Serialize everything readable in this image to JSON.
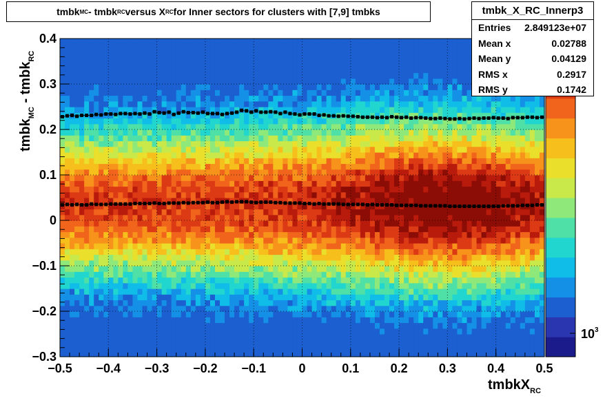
{
  "title": {
    "part1": "tmbk",
    "sub1": "MC",
    "part2": " - tmbk",
    "sub2": "RC",
    "part3": " versus X",
    "sub3": "RC",
    "part4": " for Inner sectors for clusters with [7,9] tmbks"
  },
  "stats": {
    "name": "tmbk_X_RC_Innerp3",
    "rows": [
      {
        "label": "Entries",
        "value": "2.849123e+07"
      },
      {
        "label": "Mean x",
        "value": "0.02788"
      },
      {
        "label": "Mean y",
        "value": "0.04129"
      },
      {
        "label": "RMS x",
        "value": "0.2917"
      },
      {
        "label": "RMS y",
        "value": "0.1742"
      }
    ]
  },
  "axes": {
    "xlabel_main": "tmbkX",
    "xlabel_sub": "RC",
    "ylabel_part1": "tmbk",
    "ylabel_sub1": "MC",
    "ylabel_part2": " - tmbk",
    "ylabel_sub2": "RC",
    "zlabel_base": "10",
    "zlabel_exp": "3"
  },
  "chart_data": {
    "type": "heatmap",
    "xlim": [
      -0.5,
      0.5
    ],
    "ylim": [
      -0.3,
      0.4
    ],
    "x_ticks": [
      -0.5,
      -0.4,
      -0.3,
      -0.2,
      -0.1,
      0,
      0.1,
      0.2,
      0.3,
      0.4,
      0.5
    ],
    "x_tick_labels": [
      "−0.5",
      "−0.4",
      "−0.3",
      "−0.2",
      "−0.1",
      "0",
      "0.1",
      "0.2",
      "0.3",
      "0.4",
      "0.5"
    ],
    "y_ticks": [
      -0.3,
      -0.2,
      -0.1,
      0,
      0.1,
      0.2,
      0.3,
      0.4
    ],
    "y_tick_labels": [
      "−0.3",
      "−0.2",
      "−0.1",
      "0",
      "0.1",
      "0.2",
      "0.3",
      "0.4"
    ],
    "grid": true,
    "z_scale": "log",
    "x_bins": 100,
    "y_bins": 56,
    "palette": [
      "#1b1b8c",
      "#2a35b0",
      "#1c5fd0",
      "#1490e6",
      "#10bde8",
      "#20d6cf",
      "#4ee0a6",
      "#8fe87a",
      "#c9e84a",
      "#eadf2a",
      "#f6bf1c",
      "#f7921a",
      "#f0641c",
      "#dc3a14",
      "#b81a0c",
      "#8c0c06"
    ],
    "profile_upper_y": [
      0.228,
      0.23,
      0.231,
      0.229,
      0.231,
      0.231,
      0.231,
      0.233,
      0.232,
      0.234,
      0.234,
      0.233,
      0.235,
      0.235,
      0.234,
      0.235,
      0.234,
      0.236,
      0.234,
      0.239,
      0.237,
      0.236,
      0.238,
      0.233,
      0.236,
      0.239,
      0.237,
      0.237,
      0.236,
      0.238,
      0.235,
      0.235,
      0.235,
      0.233,
      0.235,
      0.236,
      0.238,
      0.242,
      0.241,
      0.238,
      0.241,
      0.238,
      0.238,
      0.239,
      0.238,
      0.235,
      0.238,
      0.235,
      0.234,
      0.232,
      0.234,
      0.234,
      0.234,
      0.231,
      0.232,
      0.23,
      0.23,
      0.229,
      0.23,
      0.229,
      0.229,
      0.228,
      0.227,
      0.227,
      0.227,
      0.226,
      0.227,
      0.226,
      0.228,
      0.227,
      0.226,
      0.227,
      0.225,
      0.226,
      0.226,
      0.225,
      0.224,
      0.224,
      0.225,
      0.224,
      0.223,
      0.223,
      0.224,
      0.223,
      0.224,
      0.225,
      0.224,
      0.225,
      0.225,
      0.226,
      0.225,
      0.225,
      0.224,
      0.226,
      0.226,
      0.226,
      0.227,
      0.227,
      0.226,
      0.227
    ],
    "profile_lower_y": [
      0.034,
      0.035,
      0.034,
      0.035,
      0.034,
      0.034,
      0.036,
      0.035,
      0.035,
      0.035,
      0.036,
      0.036,
      0.036,
      0.036,
      0.036,
      0.037,
      0.037,
      0.037,
      0.037,
      0.038,
      0.037,
      0.037,
      0.038,
      0.038,
      0.038,
      0.039,
      0.038,
      0.039,
      0.039,
      0.039,
      0.04,
      0.039,
      0.039,
      0.04,
      0.041,
      0.04,
      0.041,
      0.041,
      0.041,
      0.04,
      0.039,
      0.04,
      0.04,
      0.04,
      0.039,
      0.039,
      0.038,
      0.038,
      0.038,
      0.038,
      0.037,
      0.037,
      0.036,
      0.037,
      0.036,
      0.036,
      0.036,
      0.036,
      0.035,
      0.035,
      0.035,
      0.035,
      0.035,
      0.034,
      0.035,
      0.034,
      0.034,
      0.034,
      0.034,
      0.033,
      0.033,
      0.033,
      0.033,
      0.033,
      0.032,
      0.032,
      0.032,
      0.032,
      0.032,
      0.032,
      0.031,
      0.031,
      0.031,
      0.031,
      0.031,
      0.031,
      0.031,
      0.031,
      0.031,
      0.031,
      0.031,
      0.032,
      0.032,
      0.032,
      0.032,
      0.033,
      0.033,
      0.033,
      0.034,
      0.034
    ]
  }
}
